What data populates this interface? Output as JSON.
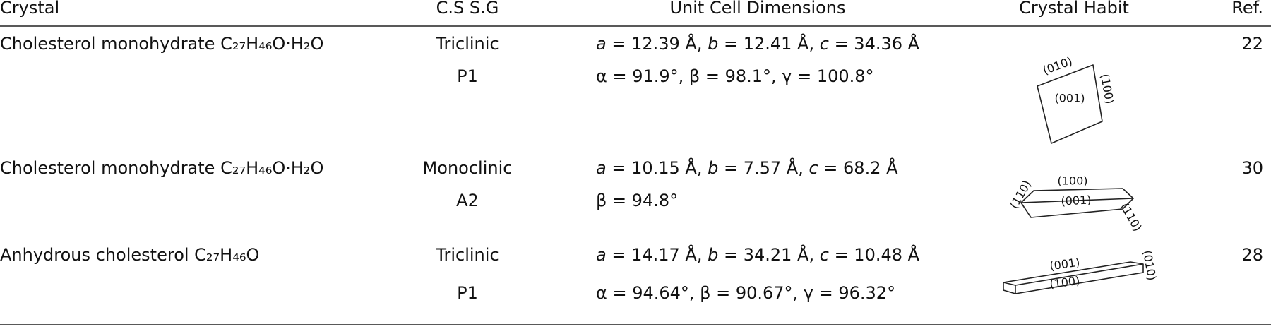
{
  "table": {
    "headers": [
      "Crystal",
      "C.S S.G",
      "Unit Cell Dimensions",
      "Crystal Habit",
      "Ref."
    ],
    "rows": [
      {
        "crystal": "Cholesterol monohydrate C₂₇H₄₆O·H₂O",
        "system": "Triclinic",
        "space_group": "P1",
        "dimensions": [
          "a = 12.39 Å, b = 12.41 Å, c = 34.36 Å",
          "α = 91.9°, β = 98.1°, γ = 100.8°"
        ],
        "habit_faces": [
          "(010)",
          "(100)",
          "(001)"
        ],
        "ref": 22
      },
      {
        "crystal": "Cholesterol monohydrate C₂₇H₄₆O·H₂O",
        "system": "Monoclinic",
        "space_group": "A2",
        "dimensions": [
          "a = 10.15 Å, b = 7.57 Å, c = 68.2 Å",
          "β = 94.8°"
        ],
        "habit_faces": [
          "(110)",
          "(100)",
          "(001)",
          "(110)"
        ],
        "ref": 30
      },
      {
        "crystal": "Anhydrous cholesterol C₂₇H₄₆O",
        "system": "Triclinic",
        "space_group": "P1",
        "dimensions": [
          "a = 14.17 Å, b = 34.21 Å, c = 10.48 Å",
          "α = 94.64°, β = 90.67°, γ = 96.32°"
        ],
        "habit_faces": [
          "(001)",
          "(100)",
          "(010)"
        ],
        "ref": 28
      }
    ]
  }
}
